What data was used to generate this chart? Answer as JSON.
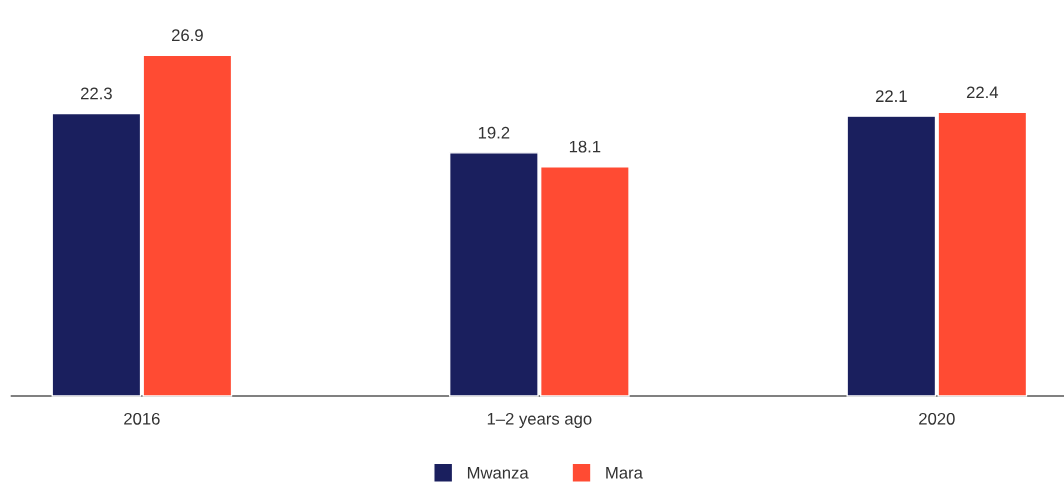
{
  "chart_data": {
    "type": "bar",
    "categories": [
      "2016",
      "1–2 years ago",
      "2020"
    ],
    "series": [
      {
        "name": "Mwanza",
        "color": "#1a1f5e",
        "values": [
          22.3,
          19.2,
          22.1
        ]
      },
      {
        "name": "Mara",
        "color": "#ff4b33",
        "values": [
          26.9,
          18.1,
          22.4
        ]
      }
    ],
    "data_labels": true,
    "legend": "bottom"
  }
}
